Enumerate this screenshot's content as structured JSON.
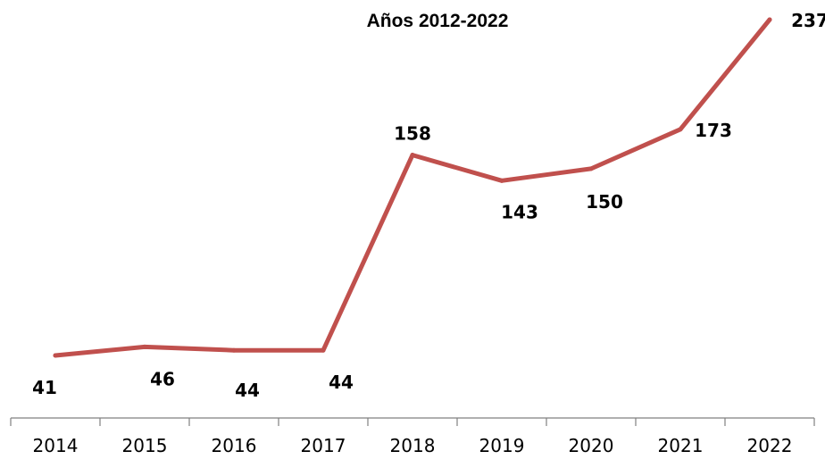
{
  "chart_data": {
    "type": "line",
    "title": "Años 2012-2022",
    "xlabel": "",
    "ylabel": "",
    "categories": [
      "2014",
      "2015",
      "2016",
      "2017",
      "2018",
      "2019",
      "2020",
      "2021",
      "2022"
    ],
    "series": [
      {
        "values": [
          41,
          46,
          44,
          44,
          158,
          143,
          150,
          173,
          237
        ],
        "color": "#C0504D"
      }
    ],
    "ylim": [
      0,
      237
    ],
    "grid": false,
    "legend": "none",
    "data_labels": true
  }
}
